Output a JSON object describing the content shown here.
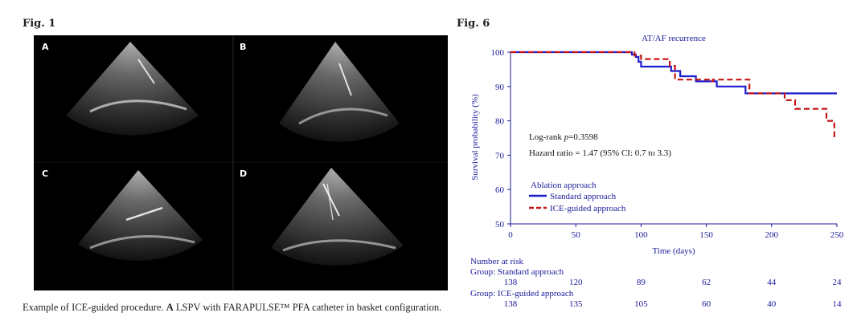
{
  "left_figure": {
    "heading": "Fig. 1",
    "panels": [
      {
        "label": "A"
      },
      {
        "label": "B"
      },
      {
        "label": "C"
      },
      {
        "label": "D"
      }
    ],
    "caption_bold": "A",
    "caption_pre": "Example of ICE-guided procedure. ",
    "caption_post": " LSPV with FARAPULSE™ PFA catheter in basket configuration."
  },
  "right_figure": {
    "heading": "Fig. 6"
  },
  "colors": {
    "standard": "#1c1ccf",
    "ice": "#c81414",
    "axis": "#1a1a9a"
  },
  "chart_data": {
    "type": "line",
    "title": "AT/AF recurrence",
    "xlabel": "Time (days)",
    "ylabel": "Survival probability (%)",
    "xlim": [
      0,
      250
    ],
    "ylim": [
      50,
      100
    ],
    "xticks": [
      0,
      50,
      100,
      150,
      200,
      250
    ],
    "yticks": [
      50,
      60,
      70,
      80,
      90,
      100
    ],
    "annotations": {
      "logrank_prefix": "Log-rank ",
      "logrank_p": "p",
      "logrank_value": "=0.3598",
      "hazard": "Hazard ratio = 1.47 (95% CI: 0.7 to 3.3)"
    },
    "legend_title": "Ablation approach",
    "legend_position": "left",
    "series": [
      {
        "name": "Standard approach",
        "style": "solid",
        "steps": [
          [
            0,
            100
          ],
          [
            93,
            100
          ],
          [
            93,
            99.3
          ],
          [
            96,
            99.3
          ],
          [
            96,
            98.6
          ],
          [
            98,
            98.6
          ],
          [
            98,
            97.2
          ],
          [
            100,
            97.2
          ],
          [
            100,
            95.8
          ],
          [
            123,
            95.8
          ],
          [
            123,
            94.5
          ],
          [
            130,
            94.5
          ],
          [
            130,
            93
          ],
          [
            142,
            93
          ],
          [
            142,
            91.5
          ],
          [
            158,
            91.5
          ],
          [
            158,
            90
          ],
          [
            180,
            90
          ],
          [
            180,
            88
          ],
          [
            250,
            88
          ]
        ]
      },
      {
        "name": "ICE-guided approach",
        "style": "dashed",
        "steps": [
          [
            0,
            100
          ],
          [
            95,
            100
          ],
          [
            95,
            99
          ],
          [
            100,
            99
          ],
          [
            100,
            98
          ],
          [
            122,
            98
          ],
          [
            122,
            96
          ],
          [
            126,
            96
          ],
          [
            126,
            92
          ],
          [
            153,
            92
          ],
          [
            153,
            91.5
          ],
          [
            155,
            91.5
          ],
          [
            155,
            92
          ],
          [
            183,
            92
          ],
          [
            183,
            88
          ],
          [
            210,
            88
          ],
          [
            210,
            86
          ],
          [
            218,
            86
          ],
          [
            218,
            83.5
          ],
          [
            242,
            83.5
          ],
          [
            242,
            80
          ],
          [
            248,
            80
          ],
          [
            248,
            75.5
          ],
          [
            250,
            75.5
          ]
        ]
      }
    ],
    "risk_table": {
      "title": "Number at risk",
      "groups": [
        {
          "label": "Group: Standard approach",
          "values": [
            138,
            120,
            89,
            62,
            44,
            24
          ]
        },
        {
          "label": "Group: ICE-guided approach",
          "values": [
            138,
            135,
            105,
            60,
            40,
            14
          ]
        }
      ]
    }
  }
}
